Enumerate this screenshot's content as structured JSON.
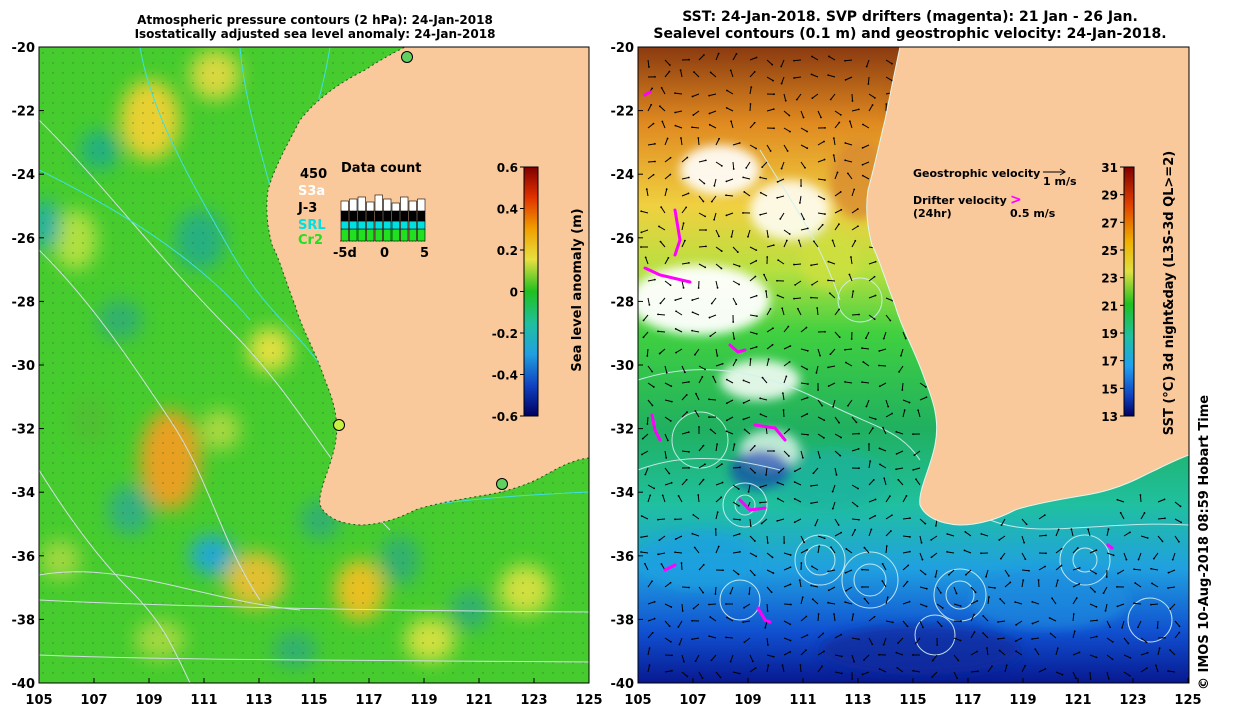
{
  "left_panel": {
    "title_line1": "Atmospheric pressure contours (2 hPa): 24-Jan-2018",
    "title_line2": "Isostatically adjusted sea level anomaly: 24-Jan-2018",
    "y_ticks": [
      "-20",
      "-22",
      "-24",
      "-26",
      "-28",
      "-30",
      "-32",
      "-34",
      "-36",
      "-38",
      "-40"
    ],
    "x_ticks": [
      "105",
      "107",
      "109",
      "111",
      "113",
      "115",
      "117",
      "119",
      "121",
      "123",
      "125"
    ],
    "colorbar_label": "Sea level anomaly (m)",
    "colorbar_ticks": [
      "0.6",
      "0.4",
      "0.2",
      "0",
      "-0.2",
      "-0.4",
      "-0.6"
    ],
    "data_count": {
      "title": "Data count",
      "max_label": "450",
      "missions": [
        "S3a",
        "J-3",
        "SRL",
        "Cr2"
      ],
      "x_ticks": [
        "-5d",
        "0",
        "5"
      ],
      "colors": {
        "S3a": "#ffffff",
        "J-3": "#000000",
        "SRL": "#00e0e0",
        "Cr2": "#20e020"
      }
    }
  },
  "right_panel": {
    "title_line1": "SST: 24-Jan-2018. SVP drifters (magenta): 21 Jan - 26 Jan.",
    "title_line2": "Sealevel contours (0.1 m) and geostrophic velocity: 24-Jan-2018.",
    "y_ticks": [
      "-20",
      "-22",
      "-24",
      "-26",
      "-28",
      "-30",
      "-32",
      "-34",
      "-36",
      "-38",
      "-40"
    ],
    "x_ticks": [
      "105",
      "107",
      "109",
      "111",
      "113",
      "115",
      "117",
      "119",
      "121",
      "123",
      "125"
    ],
    "geo_velocity_label": "Geostrophic velocity",
    "geo_velocity_scale": "1 m/s",
    "drifter_label_1": "Drifter velocity",
    "drifter_label_2": "(24hr)",
    "drifter_scale": "0.5 m/s",
    "drifter_symbol": ">",
    "colorbar_label": "SST (°C) 3d night&day (L3S-3d QL>=2)",
    "colorbar_ticks": [
      "31",
      "29",
      "27",
      "25",
      "23",
      "21",
      "19",
      "17",
      "15",
      "13"
    ]
  },
  "credit": "© IMOS 10-Aug-2018 08:59 Hobart Time",
  "colors": {
    "land": "#f9c89b",
    "ocean_green": "#3cc83c",
    "drifter": "#ff00ff"
  }
}
